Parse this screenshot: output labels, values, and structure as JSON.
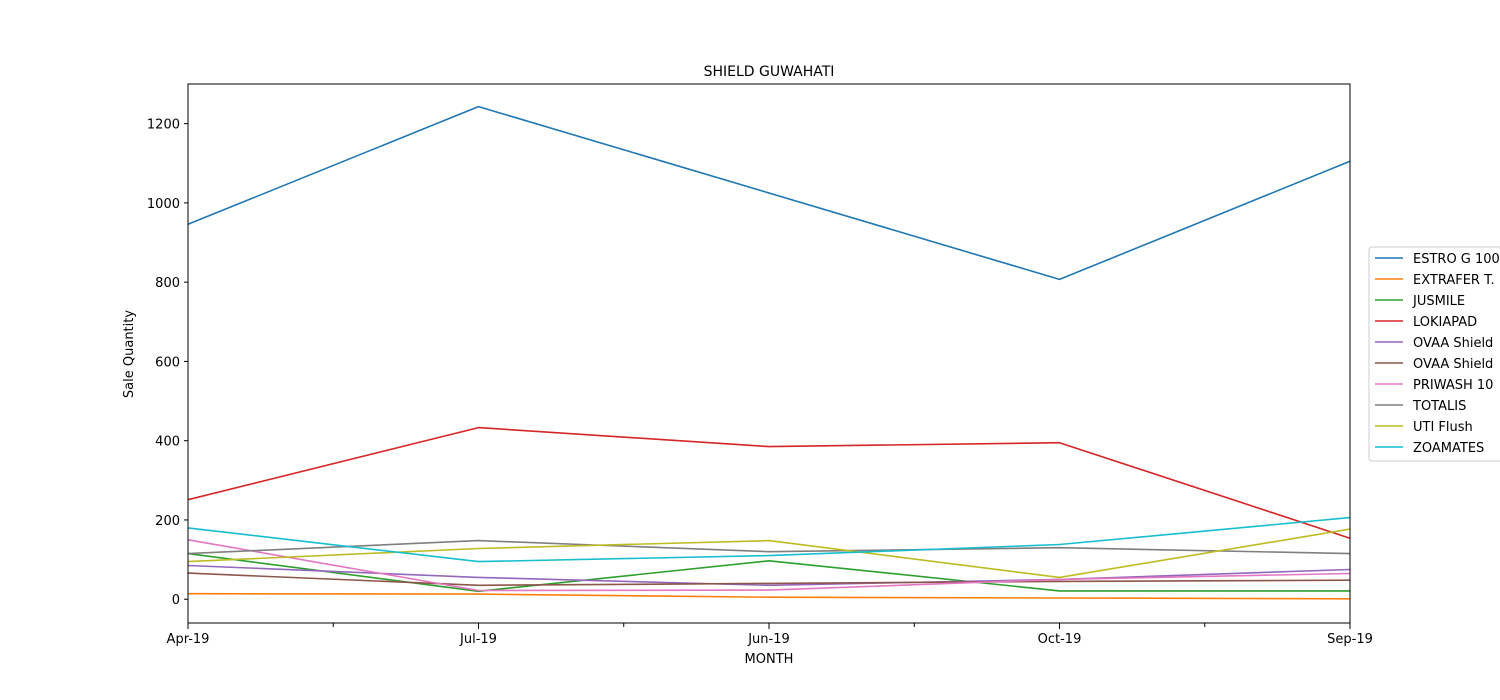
{
  "chart_data": {
    "type": "line",
    "title": "SHIELD GUWAHATI",
    "xlabel": "MONTH",
    "ylabel": "Sale Quantity",
    "categories": [
      "Apr-19",
      "Jul-19",
      "Jun-19",
      "Oct-19",
      "Sep-19"
    ],
    "ylim": [
      -60,
      1300
    ],
    "yticks": [
      0,
      200,
      400,
      600,
      800,
      1000,
      1200
    ],
    "grid": false,
    "legend_position": "right",
    "series": [
      {
        "name": "ESTRO G 100",
        "color": "#1f77b4",
        "values": [
          946,
          1243,
          1025,
          807,
          1105
        ]
      },
      {
        "name": "EXTRAFER T.",
        "color": "#ff7f0e",
        "values": [
          14,
          13,
          5,
          3,
          1
        ]
      },
      {
        "name": "JUSMILE",
        "color": "#2ca02c",
        "values": [
          115,
          20,
          97,
          21,
          21
        ]
      },
      {
        "name": "LOKIAPAD",
        "color": "#d62728",
        "values": [
          251,
          433,
          385,
          395,
          154
        ]
      },
      {
        "name": "OVAA Shield",
        "color": "#9467bd",
        "values": [
          85,
          55,
          35,
          50,
          75
        ]
      },
      {
        "name": "OVAA Shield",
        "color": "#8c564b",
        "values": [
          66,
          35,
          40,
          45,
          48
        ]
      },
      {
        "name": "PRIWASH 10",
        "color": "#e377c2",
        "values": [
          150,
          22,
          23,
          50,
          65
        ]
      },
      {
        "name": "TOTALIS",
        "color": "#7f7f7f",
        "values": [
          115,
          148,
          120,
          130,
          115
        ]
      },
      {
        "name": "UTI Flush",
        "color": "#bcbd22",
        "values": [
          95,
          128,
          148,
          55,
          177
        ]
      },
      {
        "name": "ZOAMATES",
        "color": "#17becf",
        "values": [
          180,
          95,
          110,
          138,
          206
        ]
      }
    ]
  }
}
